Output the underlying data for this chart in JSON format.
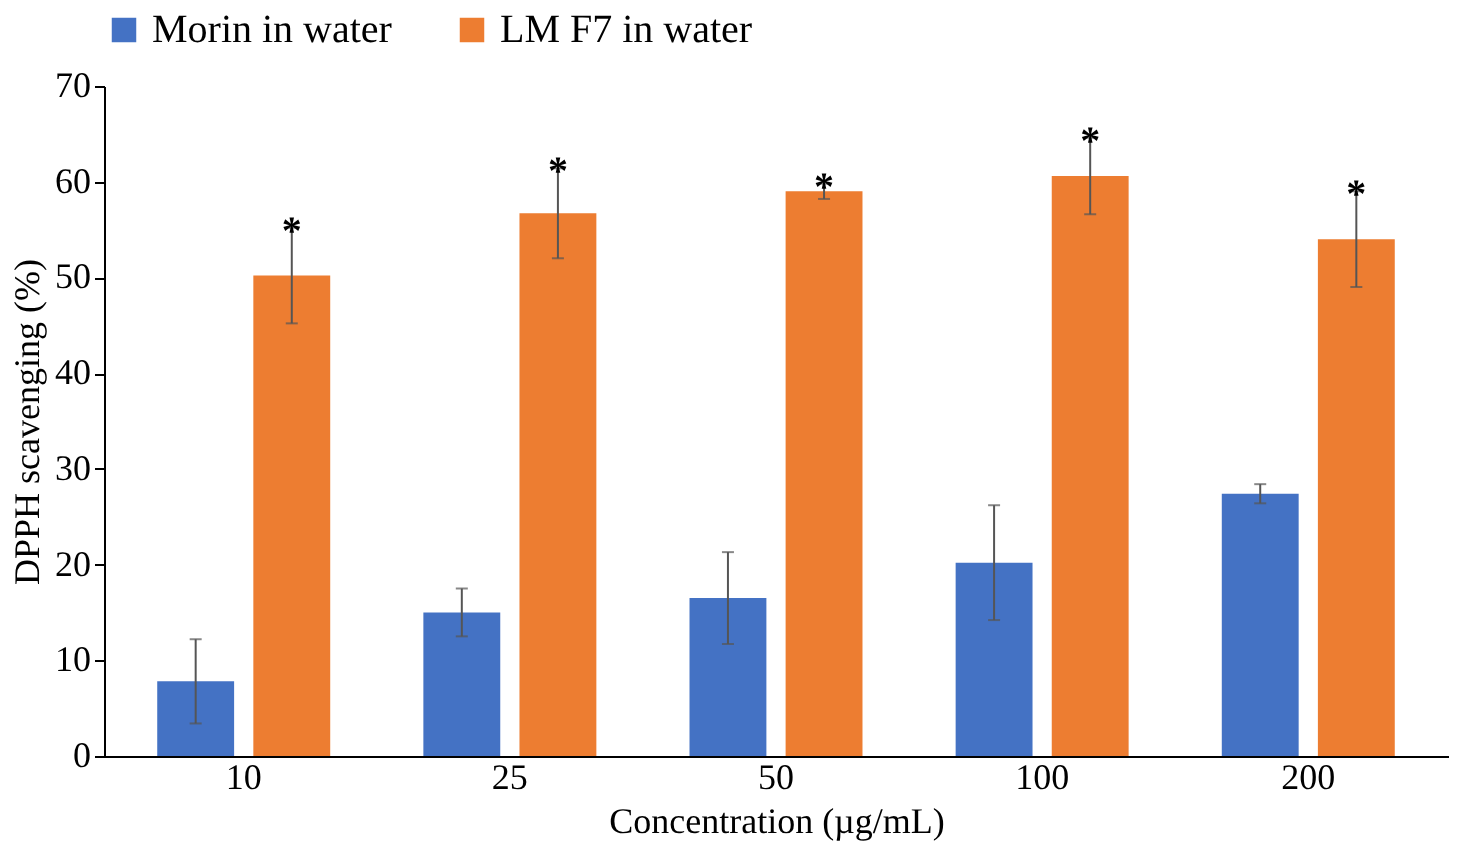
{
  "chart_data": {
    "type": "bar",
    "xlabel": "Concentration (µg/mL)",
    "ylabel": "DPPH scavenging (%)",
    "categories": [
      "10",
      "25",
      "50",
      "100",
      "200"
    ],
    "series": [
      {
        "name": "Morin in water",
        "color": "#4472c4",
        "values": [
          7.8,
          15,
          16.5,
          20.2,
          27.4
        ],
        "errors": [
          4.4,
          2.5,
          4.8,
          6,
          1
        ]
      },
      {
        "name": "LM F7 in water",
        "color": "#ed7d31",
        "values": [
          50.2,
          56.7,
          59,
          60.6,
          54
        ],
        "errors": [
          5,
          4.7,
          0.8,
          4,
          5
        ]
      }
    ],
    "ylim": [
      0,
      70
    ],
    "yticks": [
      0,
      10,
      20,
      30,
      40,
      50,
      60,
      70
    ],
    "grid": false,
    "legend": "top",
    "annotations": [
      {
        "text": "*",
        "x": "10",
        "y": 50.2
      },
      {
        "text": "*",
        "x": "25",
        "y": 56.7
      },
      {
        "text": "*",
        "x": "50",
        "y": 59
      },
      {
        "text": "*",
        "x": "100",
        "y": 60.6
      },
      {
        "text": "*",
        "x": "200",
        "y": 54
      }
    ]
  }
}
